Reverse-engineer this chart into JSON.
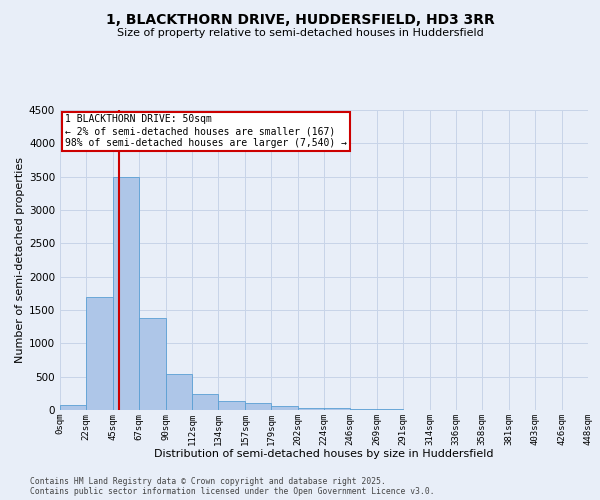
{
  "title_line1": "1, BLACKTHORN DRIVE, HUDDERSFIELD, HD3 3RR",
  "title_line2": "Size of property relative to semi-detached houses in Huddersfield",
  "xlabel": "Distribution of semi-detached houses by size in Huddersfield",
  "ylabel": "Number of semi-detached properties",
  "footnote1": "Contains HM Land Registry data © Crown copyright and database right 2025.",
  "footnote2": "Contains public sector information licensed under the Open Government Licence v3.0.",
  "bar_edges": [
    0,
    22,
    45,
    67,
    90,
    112,
    134,
    157,
    179,
    202,
    224,
    246,
    269,
    291,
    314,
    336,
    358,
    381,
    403,
    426,
    448
  ],
  "bar_heights": [
    80,
    1700,
    3500,
    1380,
    540,
    245,
    130,
    100,
    55,
    30,
    25,
    15,
    8,
    5,
    3,
    2,
    1,
    1,
    0,
    0
  ],
  "bar_color": "#aec6e8",
  "bar_edge_color": "#5a9fd4",
  "grid_color": "#c8d4e8",
  "background_color": "#e8eef8",
  "vline_x": 50,
  "vline_color": "#cc0000",
  "annotation_title": "1 BLACKTHORN DRIVE: 50sqm",
  "annotation_line2": "← 2% of semi-detached houses are smaller (167)",
  "annotation_line3": "98% of semi-detached houses are larger (7,540) →",
  "annotation_box_color": "#cc0000",
  "ylim": [
    0,
    4500
  ],
  "tick_labels": [
    "0sqm",
    "22sqm",
    "45sqm",
    "67sqm",
    "90sqm",
    "112sqm",
    "134sqm",
    "157sqm",
    "179sqm",
    "202sqm",
    "224sqm",
    "246sqm",
    "269sqm",
    "291sqm",
    "314sqm",
    "336sqm",
    "358sqm",
    "381sqm",
    "403sqm",
    "426sqm",
    "448sqm"
  ]
}
